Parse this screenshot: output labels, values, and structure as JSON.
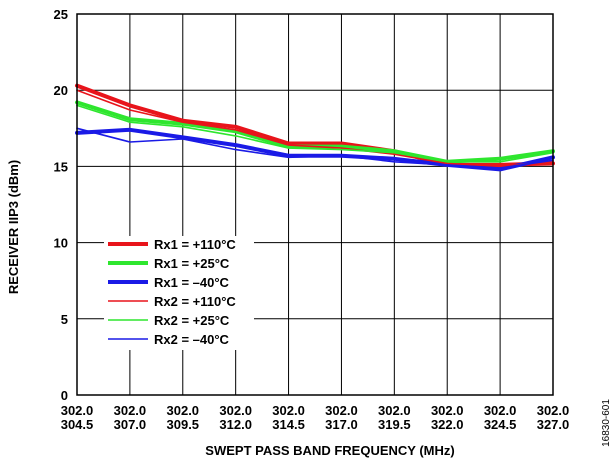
{
  "chart_data": {
    "type": "line",
    "xlabel": "SWEPT PASS BAND FREQUENCY (MHz)",
    "ylabel": "RECEIVER IIP3 (dBm)",
    "ylim": [
      0,
      25
    ],
    "yticks": [
      "0",
      "5",
      "10",
      "15",
      "20",
      "25"
    ],
    "categories": [
      [
        "302.0",
        "304.5"
      ],
      [
        "302.0",
        "307.0"
      ],
      [
        "302.0",
        "309.5"
      ],
      [
        "302.0",
        "312.0"
      ],
      [
        "302.0",
        "314.5"
      ],
      [
        "302.0",
        "317.0"
      ],
      [
        "302.0",
        "319.5"
      ],
      [
        "302.0",
        "322.0"
      ],
      [
        "302.0",
        "324.5"
      ],
      [
        "302.0",
        "327.0"
      ]
    ],
    "grid": true,
    "legend_position": "lower-left",
    "series": [
      {
        "name": "Rx1 = +110°C",
        "color": "#e8141b",
        "weight": "thick",
        "values": [
          20.3,
          19.0,
          18.0,
          17.6,
          16.5,
          16.5,
          16.0,
          15.1,
          15.1,
          15.2
        ]
      },
      {
        "name": "Rx1 = +25°C",
        "color": "#2ee62e",
        "weight": "thick",
        "values": [
          19.2,
          18.1,
          17.8,
          17.3,
          16.3,
          16.3,
          16.0,
          15.3,
          15.5,
          16.0
        ]
      },
      {
        "name": "Rx1 = –40°C",
        "color": "#1a1ae6",
        "weight": "thick",
        "values": [
          17.2,
          17.4,
          16.9,
          16.4,
          15.7,
          15.7,
          15.5,
          15.1,
          14.8,
          15.6
        ]
      },
      {
        "name": "Rx2 = +110°C",
        "color": "#e8141b",
        "weight": "thin",
        "values": [
          20.0,
          18.7,
          17.9,
          17.4,
          16.4,
          16.2,
          15.8,
          15.2,
          15.0,
          15.3
        ]
      },
      {
        "name": "Rx2 = +25°C",
        "color": "#2ee62e",
        "weight": "thin",
        "values": [
          19.0,
          17.9,
          17.6,
          17.0,
          16.2,
          16.1,
          15.9,
          15.3,
          15.3,
          15.9
        ]
      },
      {
        "name": "Rx2 = –40°C",
        "color": "#1a1ae6",
        "weight": "thin",
        "values": [
          17.5,
          16.6,
          16.8,
          16.1,
          15.6,
          15.7,
          15.3,
          15.1,
          14.9,
          15.4
        ]
      }
    ],
    "figure_id": "16830-601"
  }
}
